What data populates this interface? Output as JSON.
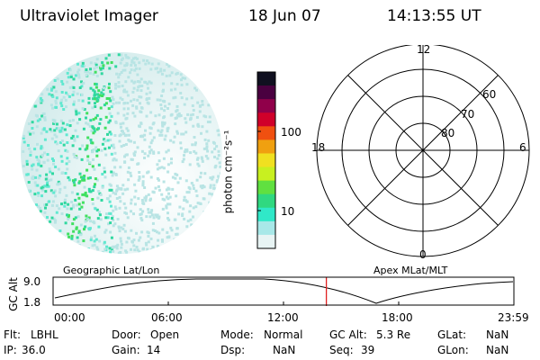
{
  "header": {
    "instrument": "Ultraviolet Imager",
    "date": "18 Jun 07",
    "time": "14:13:55 UT"
  },
  "image_panel": {
    "name": "uv-auroral-image"
  },
  "colorbar": {
    "unit_label": "photon cm⁻²s⁻¹",
    "ticks": [
      "100",
      "10"
    ],
    "colors": [
      "#101020",
      "#4a0040",
      "#90004a",
      "#d0002a",
      "#f05010",
      "#f0a010",
      "#f0e020",
      "#c8f020",
      "#60e040",
      "#30d880",
      "#30e8c8",
      "#a8e8e8",
      "#e8f4f4"
    ]
  },
  "polar_plot": {
    "mlt_labels": {
      "top": "12",
      "left": "18",
      "right": "6",
      "bottom": "0"
    },
    "lat_labels": [
      "60",
      "70",
      "80"
    ]
  },
  "timeline": {
    "left_label": "Geographic Lat/Lon",
    "right_label": "Apex MLat/MLT",
    "axis_title": "GC Alt",
    "y_ticks": [
      "9.0",
      "1.8"
    ],
    "x_ticks": [
      "00:00",
      "06:00",
      "12:00",
      "18:00",
      "23:59"
    ],
    "current_time_fraction": 0.593,
    "marker_color": "#e02020"
  },
  "status": {
    "flt_label": "Flt:",
    "flt_value": "LBHL",
    "ip_label": "IP:",
    "ip_value": "36.0",
    "door_label": "Door:",
    "door_value": "Open",
    "gain_label": "Gain:",
    "gain_value": "14",
    "mode_label": "Mode:",
    "mode_value": "Normal",
    "dsp_label": "Dsp:",
    "dsp_value": "NaN",
    "gcalt_label": "GC Alt:",
    "gcalt_value": "5.3 Re",
    "seq_label": "Seq:",
    "seq_value": "39",
    "glat_label": "GLat:",
    "glat_value": "NaN",
    "glon_label": "GLon:",
    "glon_value": "NaN"
  }
}
